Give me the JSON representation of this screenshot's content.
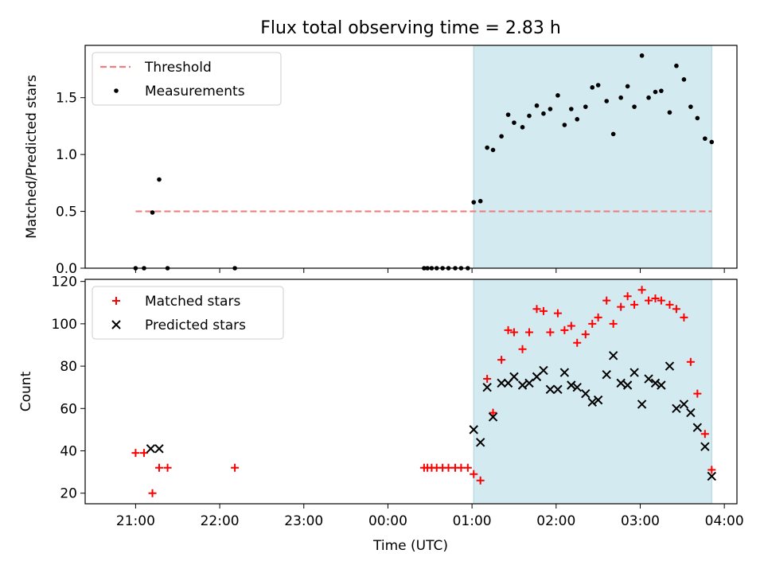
{
  "chart_data": [
    {
      "type": "scatter",
      "title": "Flux total observing time = 2.83 h",
      "xlabel": "",
      "ylabel": "Matched/Predicted stars",
      "x_unit": "hours from 00:00 UTC",
      "xlim": [
        -3.6,
        4.15
      ],
      "ylim": [
        0,
        1.96
      ],
      "yticks": [
        "0.0",
        "0.5",
        "1.0",
        "1.5"
      ],
      "legend": {
        "placement": "top-left",
        "entries": [
          "Threshold",
          "Measurements"
        ]
      },
      "shaded_interval": [
        1.02,
        3.85
      ],
      "shade_color": "#d3eaf0",
      "threshold": {
        "name": "Threshold",
        "value": 0.5,
        "x_range": [
          -3.0,
          3.85
        ],
        "color": "#f08080"
      },
      "series": [
        {
          "name": "Measurements",
          "color": "#000000",
          "x": [
            -3.0,
            -2.9,
            -2.8,
            -2.72,
            -2.62,
            -1.82,
            0.43,
            0.47,
            0.52,
            0.58,
            0.65,
            0.72,
            0.8,
            0.87,
            0.95,
            1.02,
            1.1,
            1.18,
            1.25,
            1.35,
            1.43,
            1.5,
            1.6,
            1.68,
            1.77,
            1.85,
            1.93,
            2.02,
            2.1,
            2.18,
            2.25,
            2.35,
            2.43,
            2.5,
            2.6,
            2.68,
            2.77,
            2.85,
            2.93,
            3.02,
            3.1,
            3.18,
            3.25,
            3.35,
            3.43,
            3.52,
            3.6,
            3.68,
            3.77,
            3.85
          ],
          "y": [
            0.0,
            0.0,
            0.49,
            0.78,
            0.0,
            0.0,
            0.0,
            0.0,
            0.0,
            0.0,
            0.0,
            0.0,
            0.0,
            0.0,
            0.0,
            0.58,
            0.59,
            1.06,
            1.04,
            1.16,
            1.35,
            1.28,
            1.24,
            1.34,
            1.43,
            1.36,
            1.4,
            1.52,
            1.26,
            1.4,
            1.31,
            1.42,
            1.59,
            1.61,
            1.47,
            1.18,
            1.5,
            1.6,
            1.42,
            1.87,
            1.5,
            1.55,
            1.56,
            1.37,
            1.78,
            1.66,
            1.42,
            1.32,
            1.14,
            1.11
          ]
        }
      ]
    },
    {
      "type": "scatter",
      "title": "",
      "xlabel": "Time (UTC)",
      "ylabel": "Count",
      "x_unit": "hours from 00:00 UTC",
      "xlim": [
        -3.6,
        4.15
      ],
      "ylim": [
        15,
        121
      ],
      "yticks": [
        "20",
        "40",
        "60",
        "80",
        "100",
        "120"
      ],
      "xticks": [
        "21:00",
        "22:00",
        "23:00",
        "00:00",
        "01:00",
        "02:00",
        "03:00",
        "04:00"
      ],
      "legend": {
        "placement": "top-left",
        "entries": [
          "Matched stars",
          "Predicted stars"
        ]
      },
      "shaded_interval": [
        1.02,
        3.85
      ],
      "shade_color": "#d3eaf0",
      "series": [
        {
          "name": "Matched stars",
          "marker": "+",
          "color": "#ff0000",
          "x": [
            -3.0,
            -2.9,
            -2.8,
            -2.72,
            -2.62,
            -1.82,
            0.43,
            0.47,
            0.52,
            0.58,
            0.65,
            0.72,
            0.8,
            0.87,
            0.95,
            1.02,
            1.1,
            1.18,
            1.25,
            1.35,
            1.43,
            1.5,
            1.6,
            1.68,
            1.77,
            1.85,
            1.93,
            2.02,
            2.1,
            2.18,
            2.25,
            2.35,
            2.43,
            2.5,
            2.6,
            2.68,
            2.77,
            2.85,
            2.93,
            3.02,
            3.1,
            3.18,
            3.25,
            3.35,
            3.43,
            3.52,
            3.6,
            3.68,
            3.77,
            3.85
          ],
          "y": [
            39,
            39,
            20,
            32,
            32,
            32,
            32,
            32,
            32,
            32,
            32,
            32,
            32,
            32,
            32,
            29,
            26,
            74,
            58,
            83,
            97,
            96,
            88,
            96,
            107,
            106,
            96,
            105,
            97,
            99,
            91,
            95,
            100,
            103,
            111,
            100,
            108,
            113,
            109,
            116,
            111,
            112,
            111,
            109,
            107,
            103,
            82,
            67,
            48,
            31
          ]
        },
        {
          "name": "Predicted stars",
          "marker": "x",
          "color": "#000000",
          "x": [
            -2.82,
            -2.72,
            1.02,
            1.1,
            1.18,
            1.25,
            1.35,
            1.43,
            1.5,
            1.6,
            1.68,
            1.77,
            1.85,
            1.93,
            2.02,
            2.1,
            2.18,
            2.25,
            2.35,
            2.43,
            2.5,
            2.6,
            2.68,
            2.77,
            2.85,
            2.93,
            3.02,
            3.1,
            3.18,
            3.25,
            3.35,
            3.43,
            3.52,
            3.6,
            3.68,
            3.77,
            3.85
          ],
          "y": [
            41,
            41,
            50,
            44,
            70,
            56,
            72,
            72,
            75,
            71,
            72,
            75,
            78,
            69,
            69,
            77,
            71,
            70,
            67,
            63,
            64,
            76,
            85,
            72,
            71,
            77,
            62,
            74,
            72,
            71,
            80,
            60,
            62,
            58,
            51,
            42,
            28
          ]
        }
      ]
    }
  ]
}
